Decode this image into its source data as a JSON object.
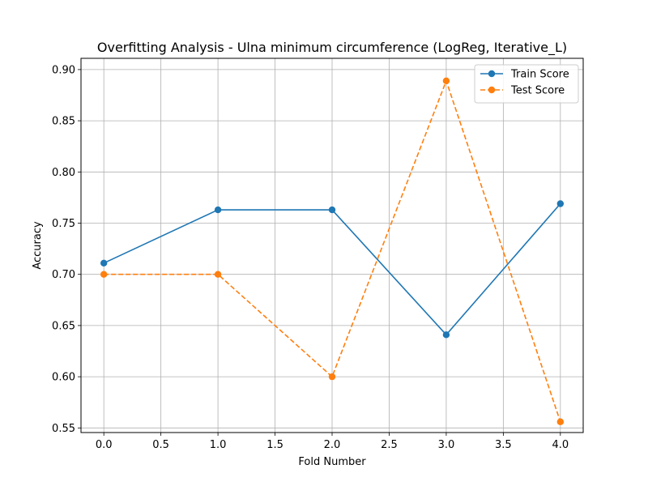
{
  "chart_data": {
    "type": "line",
    "title": "Overfitting Analysis - Ulna minimum circumference (LogReg, Iterative_L)",
    "xlabel": "Fold Number",
    "ylabel": "Accuracy",
    "xlim": [
      -0.2,
      4.2
    ],
    "ylim": [
      0.5455,
      0.911
    ],
    "xticks": [
      0.0,
      0.5,
      1.0,
      1.5,
      2.0,
      2.5,
      3.0,
      3.5,
      4.0
    ],
    "xtick_labels": [
      "0.0",
      "0.5",
      "1.0",
      "1.5",
      "2.0",
      "2.5",
      "3.0",
      "3.5",
      "4.0"
    ],
    "yticks": [
      0.55,
      0.6,
      0.65,
      0.7,
      0.75,
      0.8,
      0.85,
      0.9
    ],
    "ytick_labels": [
      "0.55",
      "0.60",
      "0.65",
      "0.70",
      "0.75",
      "0.80",
      "0.85",
      "0.90"
    ],
    "grid": true,
    "legend_position": "top-right",
    "x": [
      0,
      1,
      2,
      3,
      4
    ],
    "series": [
      {
        "name": "Train Score",
        "values": [
          0.711,
          0.763,
          0.763,
          0.641,
          0.769
        ],
        "color": "#1f77b4",
        "linestyle": "solid",
        "marker": "circle"
      },
      {
        "name": "Test Score",
        "values": [
          0.7,
          0.7,
          0.6,
          0.889,
          0.556
        ],
        "color": "#ff7f0e",
        "linestyle": "dashed",
        "marker": "circle"
      }
    ]
  }
}
